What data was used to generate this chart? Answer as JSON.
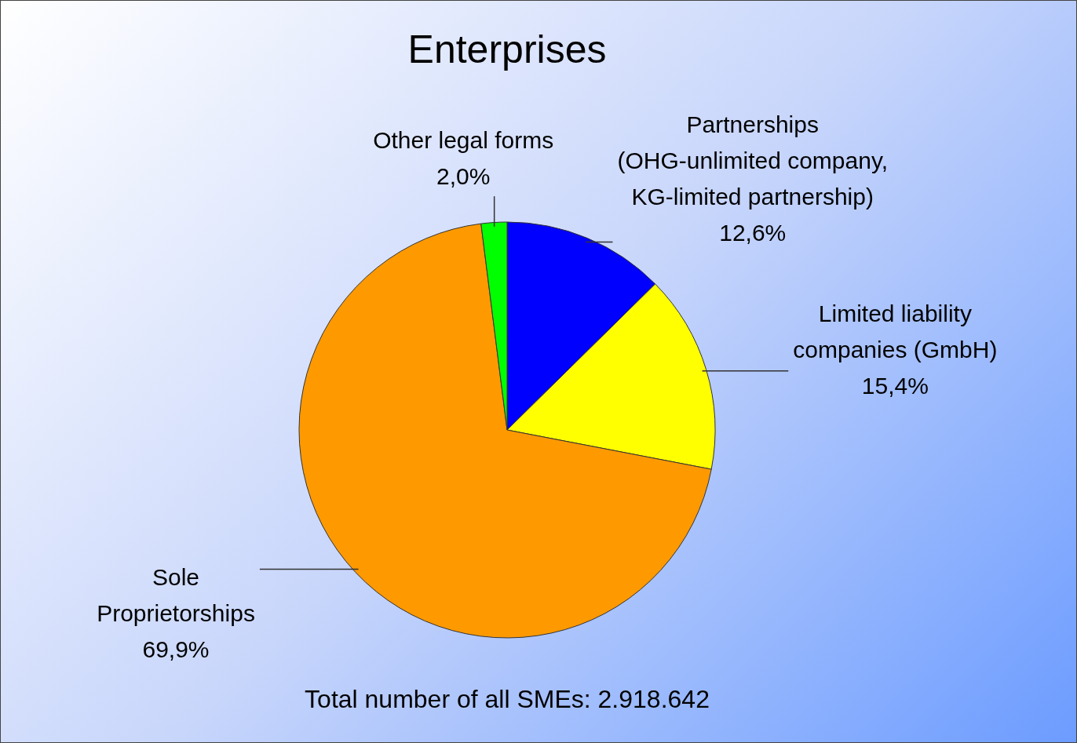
{
  "chart_data": {
    "type": "pie",
    "title": "Enterprises",
    "categories": [
      "Partnerships\n(OHG-unlimited company,\nKG-limited partnership)",
      "Limited liability\ncompanies (GmbH)",
      "Sole\nProprietorships",
      "Other legal forms"
    ],
    "values": [
      12.6,
      15.4,
      69.9,
      2.0
    ],
    "colors": [
      "#0000ff",
      "#ffff00",
      "#ff9900",
      "#00ff00"
    ],
    "value_labels": [
      "12,6%",
      "15,4%",
      "69,9%",
      "2,0%"
    ],
    "legend": false,
    "annotations": [
      "Total number of all SMEs: 2.918.642"
    ]
  }
}
